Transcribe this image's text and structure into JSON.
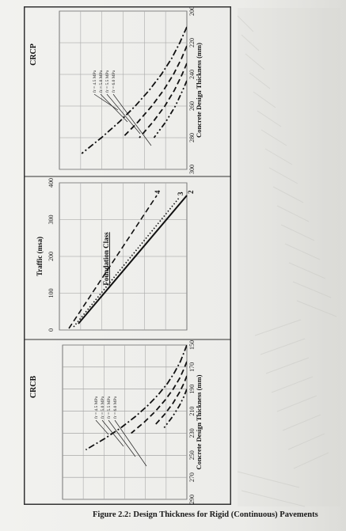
{
  "caption": "Figure 2.2: Design Thickness for Rigid (Continuous) Pavements",
  "chart_data": [
    {
      "id": "crcb",
      "type": "line",
      "title": "CRCB",
      "xlabel": "Concrete Design Thickness (mm)",
      "x_ticks": [
        150,
        170,
        190,
        210,
        230,
        250,
        270,
        290
      ],
      "xlim": [
        150,
        290
      ],
      "y_is_traffic": true,
      "ylim": [
        0,
        400
      ],
      "series": [
        {
          "name": "fr = 4.5 MPa",
          "style": "dashdot",
          "x": [
            150,
            158,
            165,
            175,
            185,
            195,
            205,
            215,
            225,
            235,
            245
          ],
          "y": [
            0,
            11,
            21,
            40,
            63,
            92,
            126,
            166,
            212,
            265,
            325
          ]
        },
        {
          "name": "fr = 5.0 MPa",
          "style": "dashed",
          "x": [
            165,
            172,
            180,
            190,
            200,
            210,
            220,
            230
          ],
          "y": [
            0,
            10,
            23,
            44,
            70,
            101,
            137,
            179
          ]
        },
        {
          "name": "fr = 5.5 MPa",
          "style": "dashed",
          "x": [
            178,
            185,
            193,
            203,
            213,
            223
          ],
          "y": [
            0,
            10,
            24,
            45,
            72,
            104
          ]
        },
        {
          "name": "fr = 6.0 MPa",
          "style": "dashdotdot",
          "x": [
            190,
            197,
            205,
            215,
            225
          ],
          "y": [
            0,
            10,
            24,
            46,
            73
          ]
        }
      ],
      "leader_labels": [
        "fr = 4.5 MPa",
        "fr = 5.0 MPa",
        "fr = 5.5 MPa",
        "fr = 6.0 MPa"
      ]
    },
    {
      "id": "traffic",
      "type": "line",
      "title": "Traffic (msa)",
      "x_ticks": [
        0,
        100,
        200,
        300,
        400
      ],
      "xlim": [
        0,
        400
      ],
      "annotation": "Foundation Class",
      "series": [
        {
          "name": "2",
          "style": "solid",
          "x": [
            0,
            400
          ],
          "y": [
            0,
            1
          ]
        },
        {
          "name": "3",
          "style": "dotted",
          "x": [
            0,
            400
          ],
          "y": [
            0,
            1
          ]
        },
        {
          "name": "4",
          "style": "dashed",
          "x": [
            0,
            400
          ],
          "y": [
            0,
            1
          ]
        }
      ]
    },
    {
      "id": "crcp",
      "type": "line",
      "title": "CRCP",
      "xlabel": "Concrete Design Thickness (mm)",
      "x_ticks": [
        200,
        220,
        240,
        260,
        280,
        300
      ],
      "xlim": [
        200,
        300
      ],
      "ylim": [
        0,
        400
      ],
      "series": [
        {
          "name": "fr = 4.5 MPa",
          "style": "dashdot",
          "x": [
            210,
            220,
            230,
            240,
            250,
            260,
            270,
            280,
            290
          ],
          "y": [
            0,
            22,
            48,
            80,
            118,
            162,
            212,
            268,
            330
          ]
        },
        {
          "name": "fr = 5.0 MPa",
          "style": "dashed",
          "x": [
            222,
            230,
            240,
            250,
            260,
            270,
            280
          ],
          "y": [
            0,
            17,
            42,
            73,
            110,
            153,
            202
          ]
        },
        {
          "name": "fr = 5.5 MPa",
          "style": "dashed",
          "x": [
            233,
            240,
            250,
            260,
            270,
            280
          ],
          "y": [
            0,
            15,
            39,
            69,
            106,
            149
          ]
        },
        {
          "name": "fr = 6.0 MPa",
          "style": "dashdotdot",
          "x": [
            244,
            250,
            260,
            270,
            280
          ],
          "y": [
            0,
            13,
            36,
            66,
            103
          ]
        }
      ],
      "leader_labels": [
        "fr = 4.5 MPa",
        "fr = 5.0 MPa",
        "fr = 5.5 MPa",
        "fr = 6.0 MPa"
      ]
    }
  ]
}
